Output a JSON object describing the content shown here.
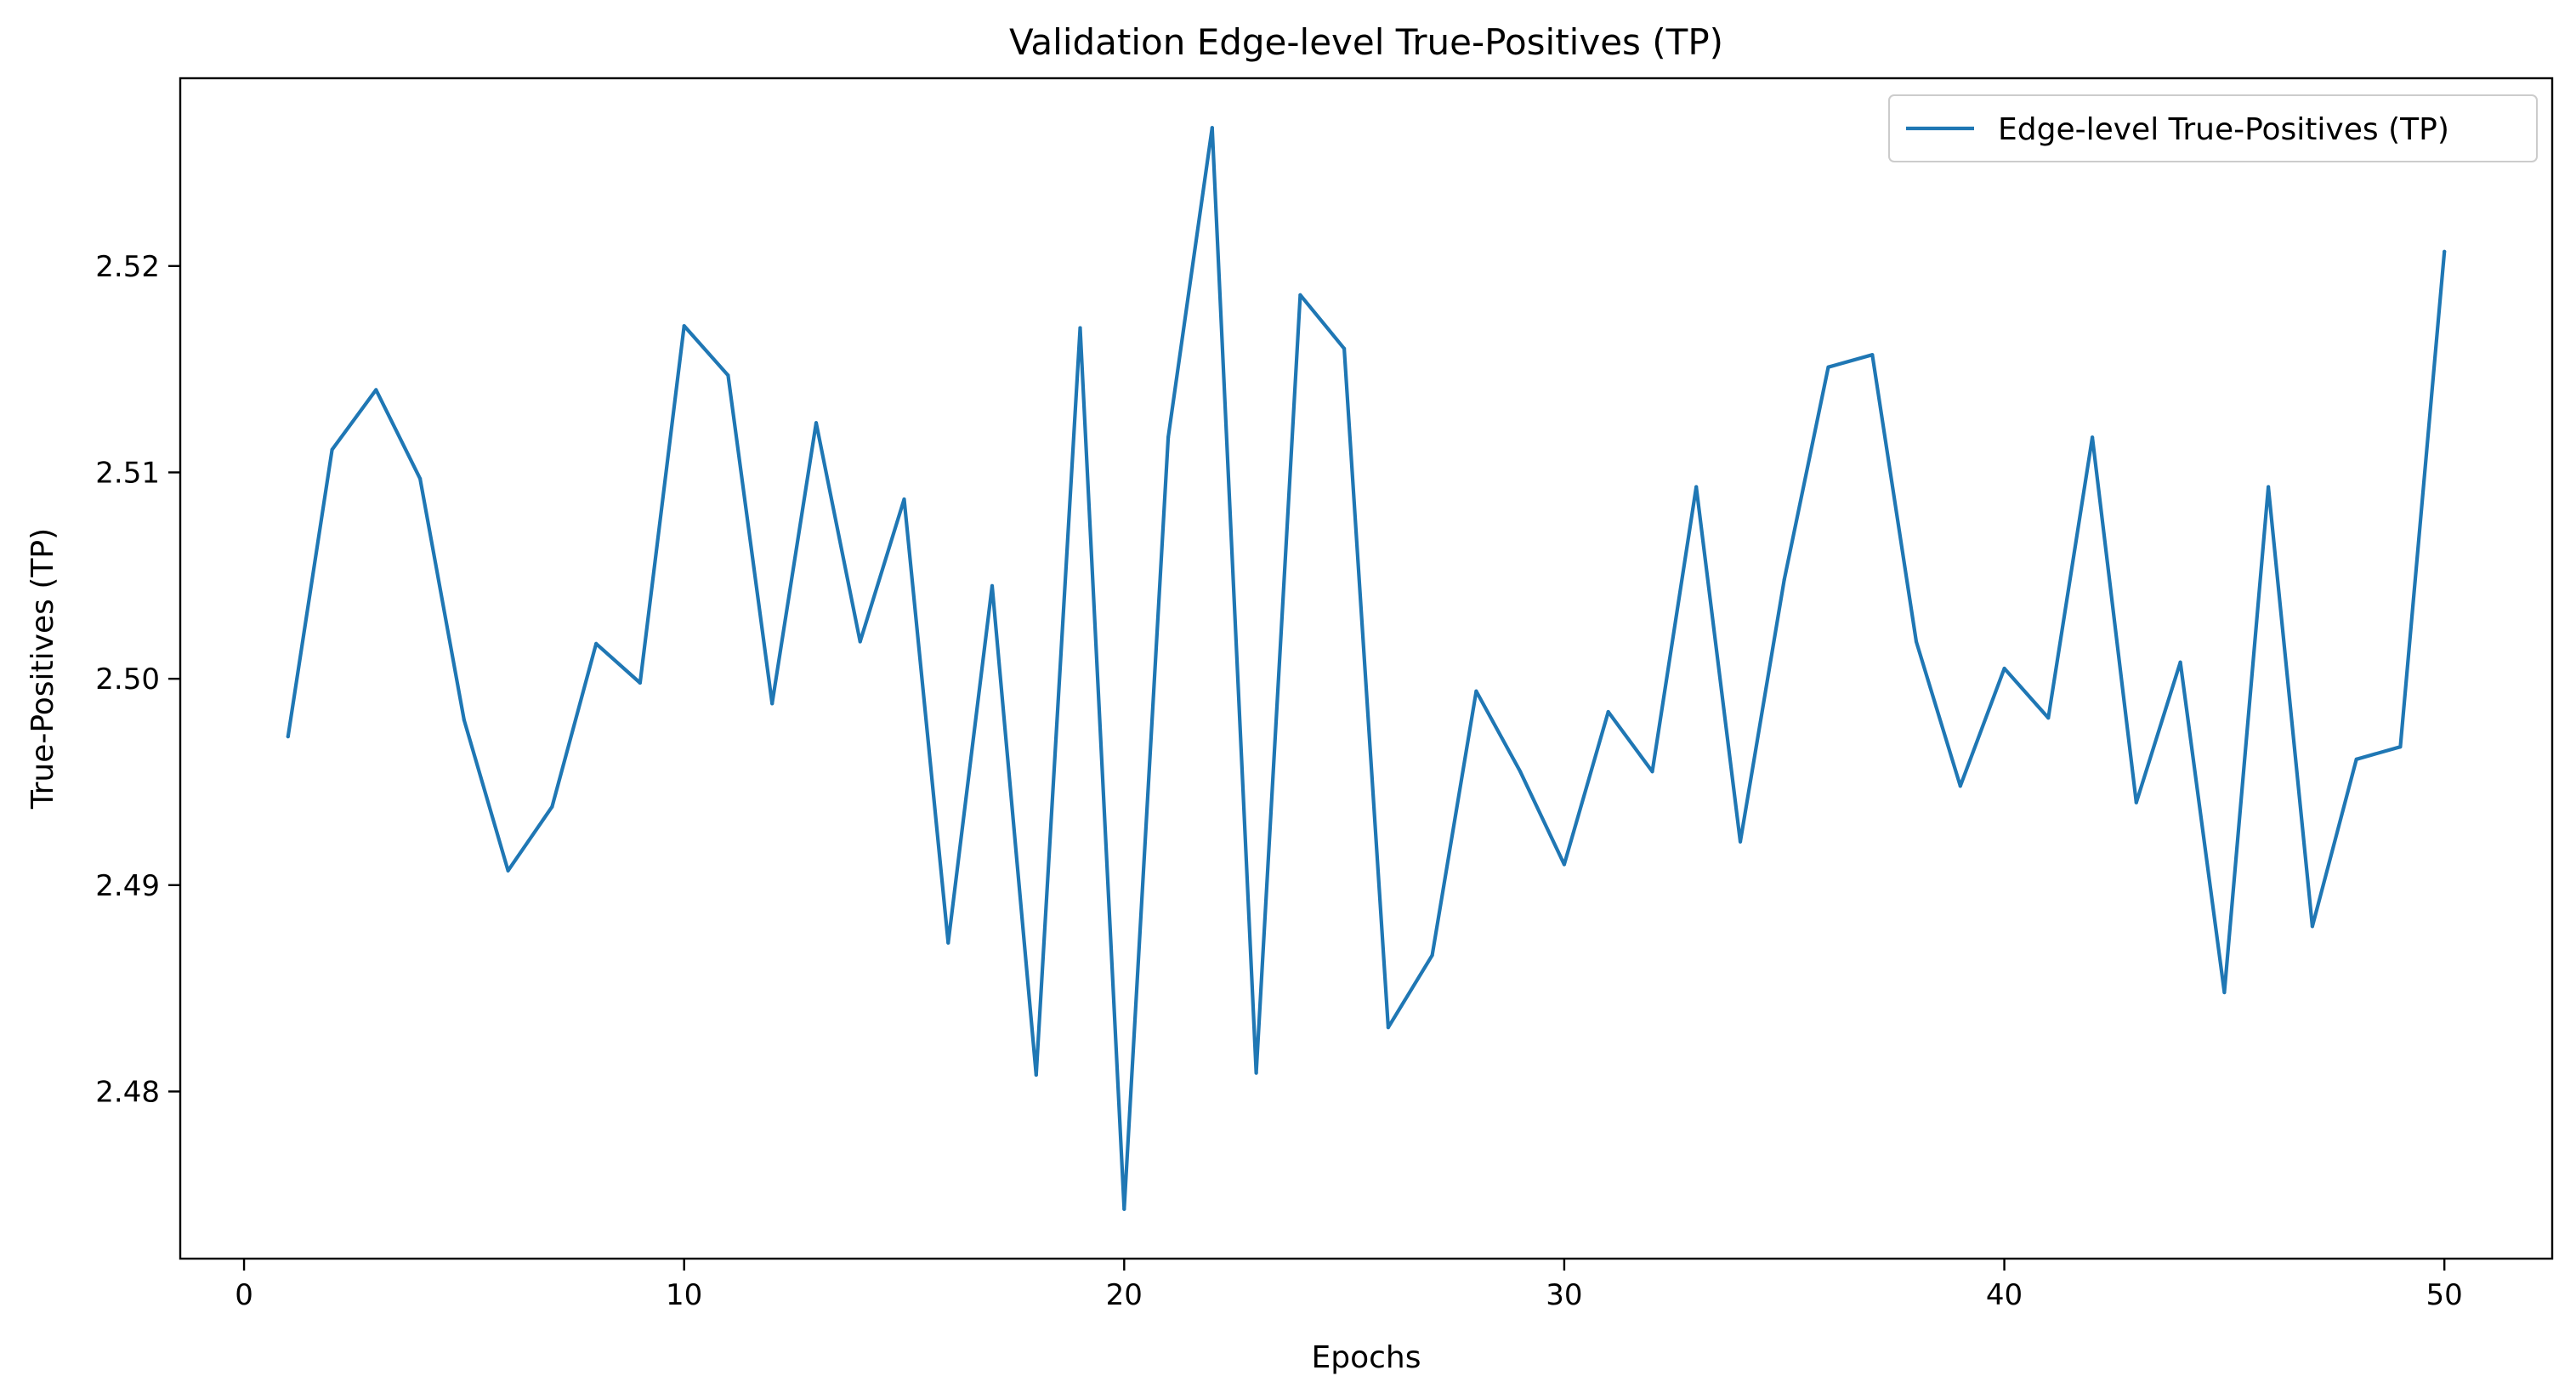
{
  "chart_data": {
    "type": "line",
    "title": "Validation Edge-level True-Positives (TP)",
    "xlabel": "Epochs",
    "ylabel": "True-Positives (TP)",
    "xlim": [
      -1.45,
      52.45
    ],
    "ylim": [
      2.4719,
      2.5291
    ],
    "xticks": [
      0,
      10,
      20,
      30,
      40,
      50
    ],
    "xtick_labels": [
      "0",
      "10",
      "20",
      "30",
      "40",
      "50"
    ],
    "yticks": [
      2.48,
      2.49,
      2.5,
      2.51,
      2.52
    ],
    "ytick_labels": [
      "2.48",
      "2.49",
      "2.50",
      "2.51",
      "2.52"
    ],
    "grid": false,
    "legend_position": "top-right",
    "colors": {
      "series": "#1f77b4",
      "axes": "#000000",
      "background": "#ffffff"
    },
    "series": [
      {
        "name": "Edge-level True-Positives (TP)",
        "x": [
          1,
          2,
          3,
          4,
          5,
          6,
          7,
          8,
          9,
          10,
          11,
          12,
          13,
          14,
          15,
          16,
          17,
          18,
          19,
          20,
          21,
          22,
          23,
          24,
          25,
          26,
          27,
          28,
          29,
          30,
          31,
          32,
          33,
          34,
          35,
          36,
          37,
          38,
          39,
          40,
          41,
          42,
          43,
          44,
          45,
          46,
          47,
          48,
          49,
          50
        ],
        "y": [
          2.4972,
          2.5111,
          2.514,
          2.5097,
          2.498,
          2.4907,
          2.4938,
          2.5017,
          2.4998,
          2.5171,
          2.5147,
          2.4988,
          2.5124,
          2.5018,
          2.5087,
          2.4872,
          2.5045,
          2.4808,
          2.517,
          2.4743,
          2.5117,
          2.5267,
          2.4809,
          2.5186,
          2.516,
          2.4831,
          2.4866,
          2.4994,
          2.4955,
          2.491,
          2.4984,
          2.4955,
          2.5093,
          2.4921,
          2.5048,
          2.5151,
          2.5157,
          2.5018,
          2.4948,
          2.5005,
          2.4981,
          2.5117,
          2.494,
          2.5008,
          2.4848,
          2.5093,
          2.488,
          2.4961,
          2.4967,
          2.5207
        ]
      }
    ]
  }
}
